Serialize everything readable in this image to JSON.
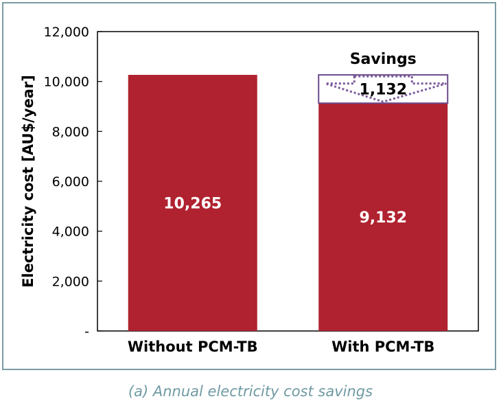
{
  "chart_data": {
    "type": "bar",
    "categories": [
      "Without PCM-TB",
      "With PCM-TB"
    ],
    "values": [
      10265,
      9132
    ],
    "data_labels": [
      "10,265",
      "9,132"
    ],
    "ylabel": "Electricity cost [AU$/year]",
    "ylim": [
      0,
      12000
    ],
    "yticks": [
      0,
      2000,
      4000,
      6000,
      8000,
      10000,
      12000
    ],
    "ytick_labels": [
      "-",
      "2,000",
      "4,000",
      "6,000",
      "8,000",
      "10,000",
      "12,000"
    ],
    "grid": false,
    "bar_color": "#b0222f",
    "savings": {
      "title": "Savings",
      "value": 1132,
      "label": "1,132",
      "category": "With PCM-TB",
      "box_color": "#6a4a8a"
    }
  },
  "caption": "(a) Annual electricity cost savings"
}
